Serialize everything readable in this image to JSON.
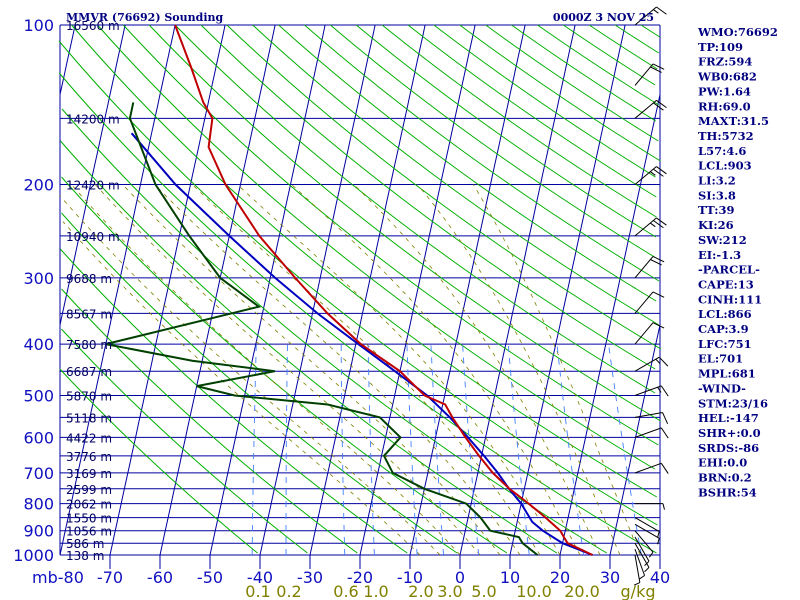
{
  "header": {
    "station": "MMVR (76692) Sounding",
    "time": "0000Z  3 NOV 25"
  },
  "chart_data": {
    "type": "skew-t",
    "p_range": [
      1000,
      100
    ],
    "t_range": [
      -80,
      40
    ],
    "pressure_levels": [
      100,
      200,
      300,
      400,
      500,
      600,
      700,
      800,
      900,
      1000
    ],
    "pressure_grid_lines": [
      100,
      150,
      200,
      250,
      300,
      350,
      400,
      450,
      500,
      550,
      600,
      650,
      700,
      750,
      800,
      850,
      900,
      950,
      1000
    ],
    "height_labels": [
      {
        "p": 100,
        "label": "16560 m"
      },
      {
        "p": 150,
        "label": "14200 m"
      },
      {
        "p": 200,
        "label": "12420 m"
      },
      {
        "p": 250,
        "label": "10940 m"
      },
      {
        "p": 300,
        "label": "9688 m"
      },
      {
        "p": 350,
        "label": "8567 m"
      },
      {
        "p": 400,
        "label": "7580 m"
      },
      {
        "p": 450,
        "label": "6687 m"
      },
      {
        "p": 500,
        "label": "5870 m"
      },
      {
        "p": 550,
        "label": "5118 m"
      },
      {
        "p": 600,
        "label": "4422 m"
      },
      {
        "p": 650,
        "label": "3776 m"
      },
      {
        "p": 700,
        "label": "3169 m"
      },
      {
        "p": 750,
        "label": "2599 m"
      },
      {
        "p": 800,
        "label": "2062 m"
      },
      {
        "p": 850,
        "label": "1550 m"
      },
      {
        "p": 900,
        "label": "1056 m"
      },
      {
        "p": 950,
        "label": "586 m"
      },
      {
        "p": 1000,
        "label": "138 m"
      }
    ],
    "temp_ticks": [
      -70,
      -60,
      -50,
      -40,
      -30,
      -20,
      -10,
      0,
      10,
      20,
      30,
      40
    ],
    "temp_labels": [
      {
        "t": -80,
        "label": "mb-80"
      },
      {
        "t": -70,
        "label": "-70"
      },
      {
        "t": -60,
        "label": "-60"
      },
      {
        "t": -50,
        "label": "-50"
      },
      {
        "t": -40,
        "label": "-40"
      },
      {
        "t": -30,
        "label": "-30"
      },
      {
        "t": -20,
        "label": "-20"
      },
      {
        "t": -10,
        "label": "-10"
      },
      {
        "t": 0,
        "label": "0"
      },
      {
        "t": 10,
        "label": "10"
      },
      {
        "t": 20,
        "label": "20"
      },
      {
        "t": 30,
        "label": "30"
      },
      {
        "t": 40,
        "label": "40"
      }
    ],
    "mixing_ratio_labels": [
      "0.1",
      "0.2",
      "0.6",
      "1.0",
      "2.0",
      "3.0",
      "5.0",
      "10.0",
      "20.0",
      "g/kg"
    ],
    "temperature": [
      [
        1000,
        26.5
      ],
      [
        950,
        21.0
      ],
      [
        925,
        20.0
      ],
      [
        900,
        19.0
      ],
      [
        850,
        15.5
      ],
      [
        800,
        11.5
      ],
      [
        750,
        7.0
      ],
      [
        700,
        3.0
      ],
      [
        650,
        -0.5
      ],
      [
        600,
        -4.0
      ],
      [
        550,
        -7.5
      ],
      [
        520,
        -9.5
      ],
      [
        500,
        -14.0
      ],
      [
        450,
        -20.0
      ],
      [
        400,
        -29.0
      ],
      [
        350,
        -37.0
      ],
      [
        300,
        -45.0
      ],
      [
        250,
        -54.0
      ],
      [
        200,
        -63.0
      ],
      [
        170,
        -68.0
      ],
      [
        150,
        -68.5
      ],
      [
        140,
        -71.0
      ],
      [
        120,
        -75.0
      ],
      [
        100,
        -80.0
      ]
    ],
    "dewpoint": [
      [
        1000,
        15.5
      ],
      [
        950,
        12.0
      ],
      [
        925,
        11.0
      ],
      [
        900,
        5.0
      ],
      [
        850,
        2.5
      ],
      [
        800,
        -1.0
      ],
      [
        750,
        -10.0
      ],
      [
        700,
        -17.0
      ],
      [
        650,
        -19.5
      ],
      [
        600,
        -17.0
      ],
      [
        550,
        -22.0
      ],
      [
        520,
        -33.0
      ],
      [
        500,
        -52.0
      ],
      [
        480,
        -60.0
      ],
      [
        450,
        -45.0
      ],
      [
        430,
        -62.0
      ],
      [
        400,
        -80.0
      ],
      [
        340,
        -51.0
      ],
      [
        300,
        -60.0
      ],
      [
        250,
        -68.0
      ],
      [
        200,
        -77.0
      ],
      [
        150,
        -85.0
      ],
      [
        140,
        -85.0
      ]
    ],
    "parcel": [
      [
        1000,
        26.5
      ],
      [
        950,
        20.0
      ],
      [
        900,
        15.5
      ],
      [
        866,
        13.0
      ],
      [
        800,
        10.0
      ],
      [
        751,
        7.0
      ],
      [
        700,
        4.0
      ],
      [
        650,
        0.5
      ],
      [
        600,
        -3.5
      ],
      [
        550,
        -8.0
      ],
      [
        500,
        -13.5
      ],
      [
        450,
        -21.0
      ],
      [
        400,
        -29.5
      ],
      [
        350,
        -39.0
      ],
      [
        300,
        -49.0
      ],
      [
        250,
        -60.0
      ],
      [
        200,
        -73.0
      ],
      [
        160,
        -84.0
      ]
    ],
    "winds": [
      [
        1000,
        170,
        5
      ],
      [
        975,
        160,
        5
      ],
      [
        950,
        150,
        5
      ],
      [
        925,
        150,
        5
      ],
      [
        900,
        140,
        5
      ],
      [
        875,
        120,
        5
      ],
      [
        850,
        120,
        5
      ],
      [
        800,
        90,
        5
      ],
      [
        700,
        70,
        10
      ],
      [
        600,
        70,
        10
      ],
      [
        550,
        80,
        10
      ],
      [
        500,
        70,
        15
      ],
      [
        450,
        60,
        15
      ],
      [
        400,
        40,
        10
      ],
      [
        350,
        40,
        10
      ],
      [
        300,
        40,
        20
      ],
      [
        250,
        50,
        25
      ],
      [
        200,
        50,
        25
      ],
      [
        150,
        50,
        20
      ],
      [
        130,
        40,
        20
      ],
      [
        100,
        50,
        15
      ]
    ]
  },
  "indices": [
    {
      "label": "WMO:76692"
    },
    {
      "label": "TP:109"
    },
    {
      "label": "FRZ:594"
    },
    {
      "label": "WB0:682"
    },
    {
      "label": "PW:1.64"
    },
    {
      "label": "RH:69.0"
    },
    {
      "label": "MAXT:31.5"
    },
    {
      "label": "TH:5732"
    },
    {
      "label": "L57:4.6"
    },
    {
      "label": "LCL:903"
    },
    {
      "label": "LI:3.2"
    },
    {
      "label": "SI:3.8"
    },
    {
      "label": "TT:39"
    },
    {
      "label": "KI:26"
    },
    {
      "label": "SW:212"
    },
    {
      "label": "EI:-1.3"
    },
    {
      "label": "-PARCEL-"
    },
    {
      "label": "CAPE:13"
    },
    {
      "label": "CINH:111"
    },
    {
      "label": "LCL:866"
    },
    {
      "label": "CAP:3.9"
    },
    {
      "label": "LFC:751"
    },
    {
      "label": "EL:701"
    },
    {
      "label": "MPL:681"
    },
    {
      "label": "-WIND-"
    },
    {
      "label": "STM:23/16"
    },
    {
      "label": "HEL:-147"
    },
    {
      "label": "SHR+:0.0"
    },
    {
      "label": "SRDS:-86"
    },
    {
      "label": "EHI:0.0"
    },
    {
      "label": "BRN:0.2"
    },
    {
      "label": "BSHR:54"
    }
  ],
  "colors": {
    "grid": "#0000a0",
    "dry_adiabat": "#00b000",
    "moist_adiabat": "#808000",
    "mixing_ratio": "#4080ff",
    "temperature": "#c00000",
    "dewpoint": "#004000",
    "parcel": "#0000c0"
  }
}
